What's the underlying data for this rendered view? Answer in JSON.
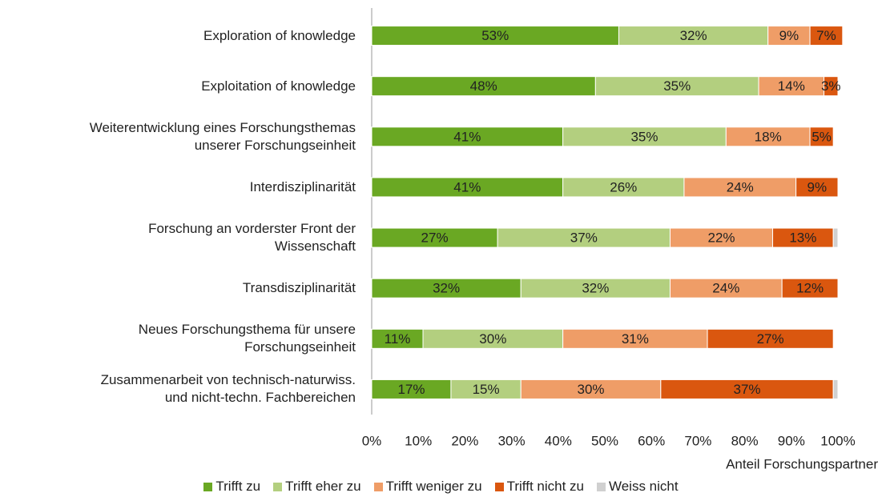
{
  "chart_data": {
    "type": "stacked_barh",
    "xlabel": "Anteil Forschungspartner",
    "categories": [
      "Exploration of knowledge",
      "Exploitation of knowledge",
      "Weiterentwicklung eines Forschungsthemas\nunserer Forschungseinheit",
      "Interdisziplinarität",
      "Forschung an vorderster Front der\nWissenschaft",
      "Transdisziplinarität",
      "Neues Forschungsthema für unsere\nForschungseinheit",
      "Zusammenarbeit von technisch-naturwiss.\nund nicht-techn. Fachbereichen"
    ],
    "series": [
      {
        "name": "Trifft zu",
        "color": "#6aa823",
        "values": [
          53,
          48,
          41,
          41,
          27,
          32,
          11,
          17
        ],
        "value_labels": [
          "53%",
          "48%",
          "41%",
          "41%",
          "27%",
          "32%",
          "11%",
          "17%"
        ]
      },
      {
        "name": "Trifft eher zu",
        "color": "#b3cf7f",
        "values": [
          32,
          35,
          35,
          26,
          37,
          32,
          30,
          15
        ],
        "value_labels": [
          "32%",
          "35%",
          "35%",
          "26%",
          "37%",
          "32%",
          "30%",
          "15%"
        ]
      },
      {
        "name": "Trifft weniger zu",
        "color": "#ef9d67",
        "values": [
          9,
          14,
          18,
          24,
          22,
          24,
          31,
          30
        ],
        "value_labels": [
          "9%",
          "14%",
          "18%",
          "24%",
          "22%",
          "24%",
          "31%",
          "30%"
        ]
      },
      {
        "name": "Trifft nicht zu",
        "color": "#da570f",
        "values": [
          7,
          3,
          5,
          9,
          13,
          12,
          27,
          37
        ],
        "value_labels": [
          "7%",
          "3%",
          "5%",
          "9%",
          "13%",
          "12%",
          "27%",
          "37%"
        ]
      },
      {
        "name": "Weiss nicht",
        "color": "#d0d0d0",
        "values": [
          0,
          0,
          0,
          0,
          1,
          0,
          0,
          1
        ]
      }
    ],
    "xlim": [
      0,
      100
    ],
    "xticks": [
      {
        "value": 0,
        "label": "0%"
      },
      {
        "value": 10,
        "label": "10%"
      },
      {
        "value": 20,
        "label": "20%"
      },
      {
        "value": 30,
        "label": "30%"
      },
      {
        "value": 40,
        "label": "40%"
      },
      {
        "value": 50,
        "label": "50%"
      },
      {
        "value": 60,
        "label": "60%"
      },
      {
        "value": 70,
        "label": "70%"
      },
      {
        "value": 80,
        "label": "80%"
      },
      {
        "value": 90,
        "label": "90%"
      },
      {
        "value": 100,
        "label": "100%"
      }
    ],
    "legend": "bottom"
  }
}
